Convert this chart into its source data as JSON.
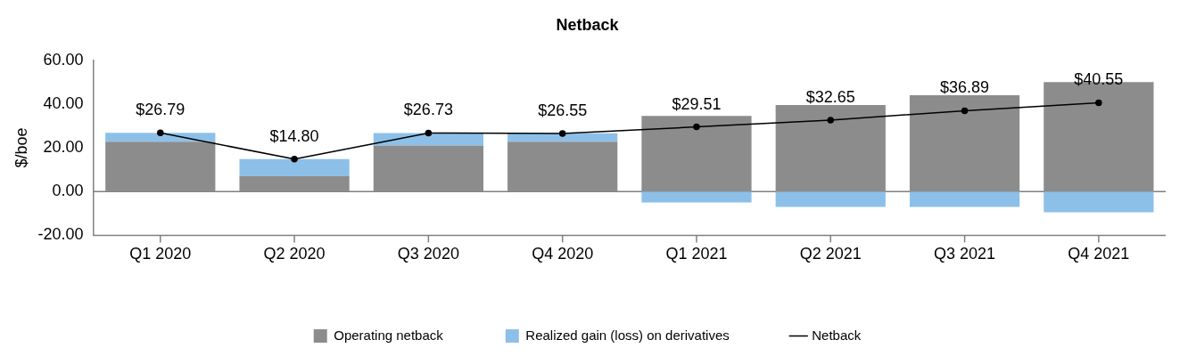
{
  "chart_data": {
    "type": "bar",
    "title": "Netback",
    "ylabel": "$/boe",
    "categories": [
      "Q1 2020",
      "Q2 2020",
      "Q3 2020",
      "Q4 2020",
      "Q1 2021",
      "Q2 2021",
      "Q3 2021",
      "Q4 2021"
    ],
    "stacked": true,
    "series": [
      {
        "name": "Operating netback",
        "color": "#8c8c8c",
        "values": [
          22.7,
          7,
          21,
          22.7,
          34.5,
          39.5,
          44,
          50
        ]
      },
      {
        "name": "Realized gain (loss) on derivatives",
        "color": "#8dc0e8",
        "values": [
          4.1,
          7.8,
          5.7,
          3.9,
          -5,
          -7,
          -7,
          -9.5
        ]
      },
      {
        "name": "Netback",
        "type": "line",
        "color": "#000000",
        "marker": "circle",
        "values": [
          26.79,
          14.8,
          26.73,
          26.55,
          29.51,
          32.65,
          36.89,
          40.55
        ],
        "value_labels": [
          "$26.79",
          "$14.80",
          "$26.73",
          "$26.55",
          "$29.51",
          "$32.65",
          "$36.89",
          "$40.55"
        ]
      }
    ],
    "ylim": [
      -20,
      60
    ],
    "yticks": [
      {
        "value": -20,
        "label": "-20.00"
      },
      {
        "value": 0,
        "label": "0.00"
      },
      {
        "value": 20,
        "label": "20.00"
      },
      {
        "value": 40,
        "label": "40.00"
      },
      {
        "value": 60,
        "label": "60.00"
      }
    ],
    "ref_lines": [
      {
        "axis": "y",
        "value": 0,
        "color": "#808080"
      }
    ],
    "grid": false,
    "legend": "bottom"
  }
}
